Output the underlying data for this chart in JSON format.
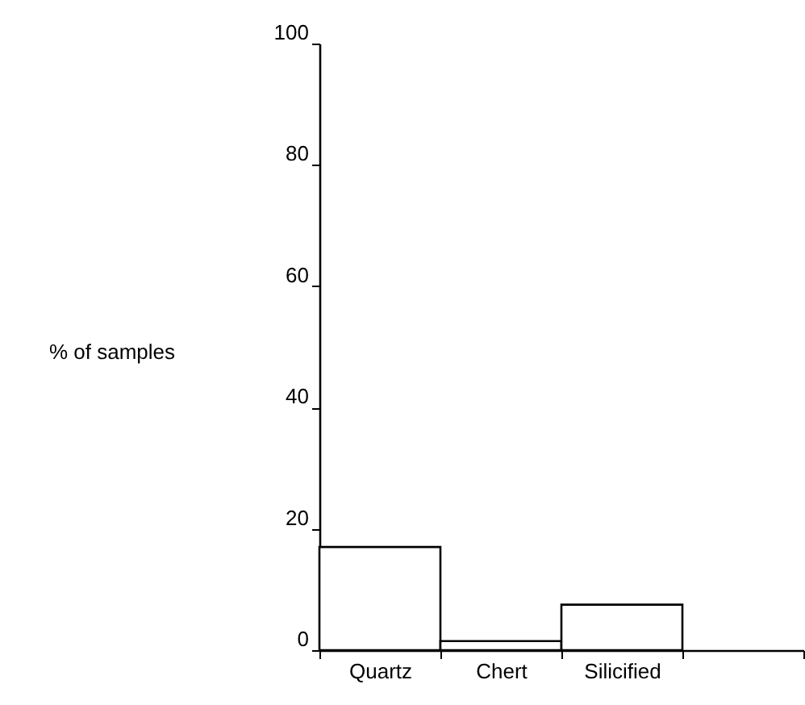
{
  "chart_data": {
    "type": "bar",
    "ylabel": "% of samples",
    "categories": [
      "Quartz",
      "Chert",
      "Silicified",
      null
    ],
    "values": [
      17,
      1.5,
      7.5,
      null
    ],
    "color": "#ffffff",
    "ylim": [
      0,
      100
    ],
    "yticks": [
      0,
      20,
      40,
      60,
      80,
      100
    ],
    "grid": false
  }
}
